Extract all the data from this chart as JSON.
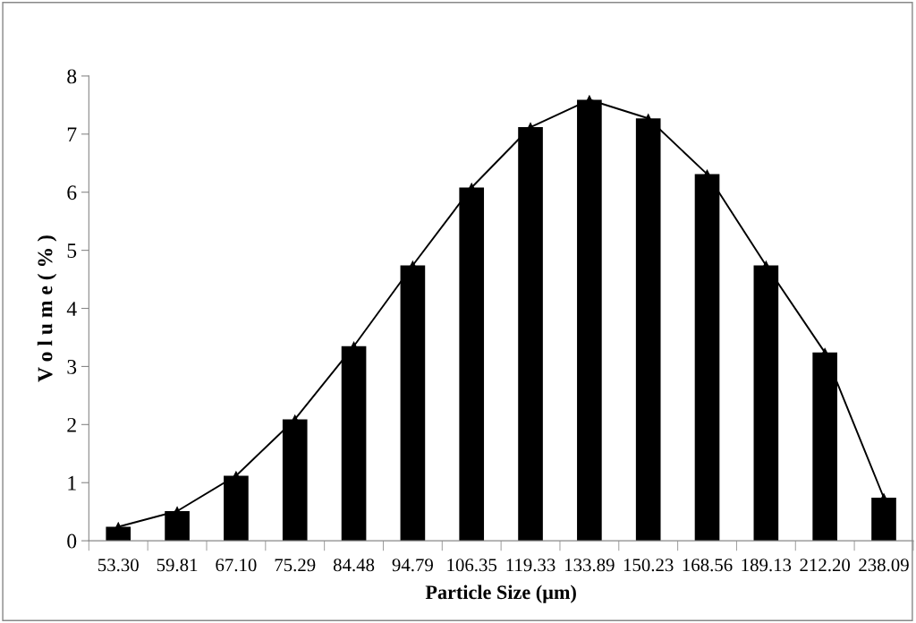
{
  "chart_data": {
    "type": "bar",
    "xlabel": "Particle Size (µm)",
    "ylabel": "V o l u m e ( % )",
    "categories": [
      "53.30",
      "59.81",
      "67.10",
      "75.29",
      "84.48",
      "94.79",
      "106.35",
      "119.33",
      "133.89",
      "150.23",
      "168.56",
      "189.13",
      "212.20",
      "238.09"
    ],
    "series": [
      {
        "color": "#000000",
        "values": [
          0.24,
          0.51,
          1.12,
          2.09,
          3.35,
          4.74,
          6.08,
          7.12,
          7.59,
          7.27,
          6.31,
          4.74,
          3.24,
          0.74
        ]
      },
      {
        "type": "line",
        "color": "#000000",
        "marker": "triangle",
        "line_style": "solid",
        "values": [
          0.24,
          0.51,
          1.12,
          2.09,
          3.35,
          4.74,
          6.08,
          7.12,
          7.59,
          7.27,
          6.31,
          4.74,
          3.24,
          0.74
        ]
      }
    ],
    "ylim": [
      0,
      8
    ],
    "yticks": [
      0,
      1,
      2,
      3,
      4,
      5,
      6,
      7,
      8
    ],
    "grid": false,
    "legend": false
  }
}
